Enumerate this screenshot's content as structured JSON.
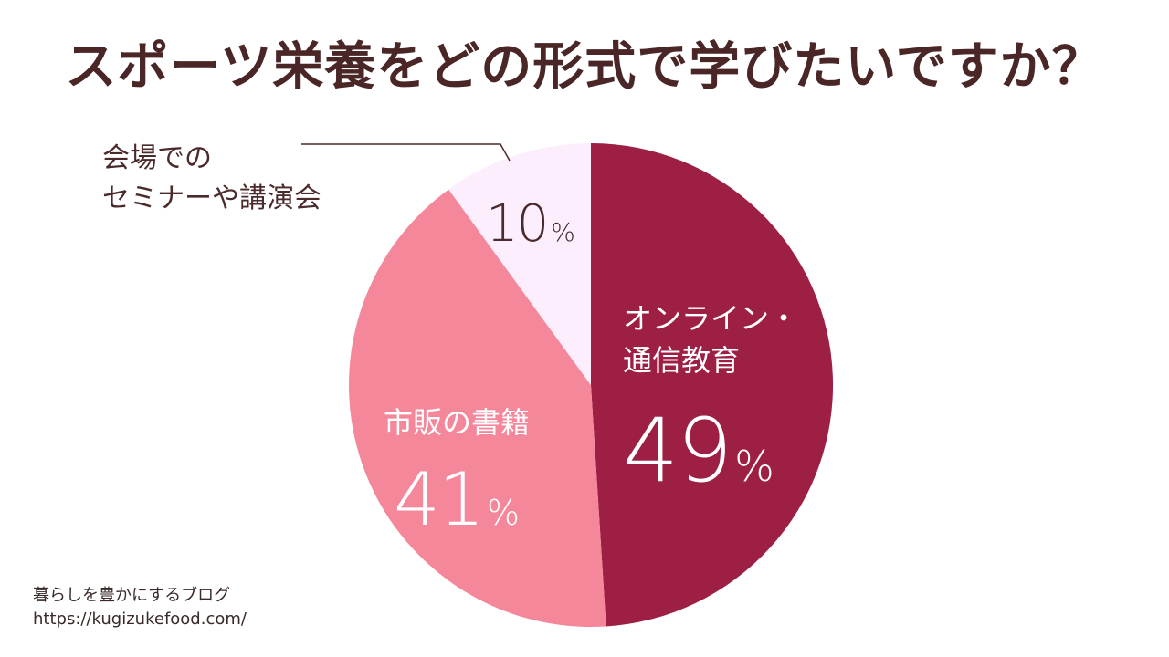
{
  "title": "スポーツ栄養をどの形式で学びたいですか？",
  "chart_data": {
    "type": "pie",
    "title": "スポーツ栄養をどの形式で学びたいですか？",
    "slices": [
      {
        "name_lines": [
          "オンライン・",
          "通信教育"
        ],
        "value": 49,
        "color": "#9e1f44",
        "label_color": "#ffffff"
      },
      {
        "name_lines": [
          "市販の書籍"
        ],
        "value": 41,
        "color": "#f5879b",
        "label_color": "#ffffff"
      },
      {
        "name_lines": [
          "会場での",
          "セミナーや講演会"
        ],
        "value": 10,
        "color": "#fdeefe",
        "label_color": "#4a2a2a"
      }
    ],
    "unit": "%",
    "start": "12 o'clock",
    "direction": "clockwise",
    "legend": "none"
  },
  "labels": {
    "online": {
      "line1": "オンライン・",
      "line2": "通信教育",
      "value": "49",
      "unit": "%"
    },
    "book": {
      "line1": "市販の書籍",
      "value": "41",
      "unit": "%"
    },
    "seminar": {
      "line1": "会場での",
      "line2": "セミナーや講演会",
      "value": "10",
      "unit": "%"
    }
  },
  "footer": {
    "line1": "暮らしを豊かにするブログ",
    "line2": "https://kugizukefood.com/"
  }
}
